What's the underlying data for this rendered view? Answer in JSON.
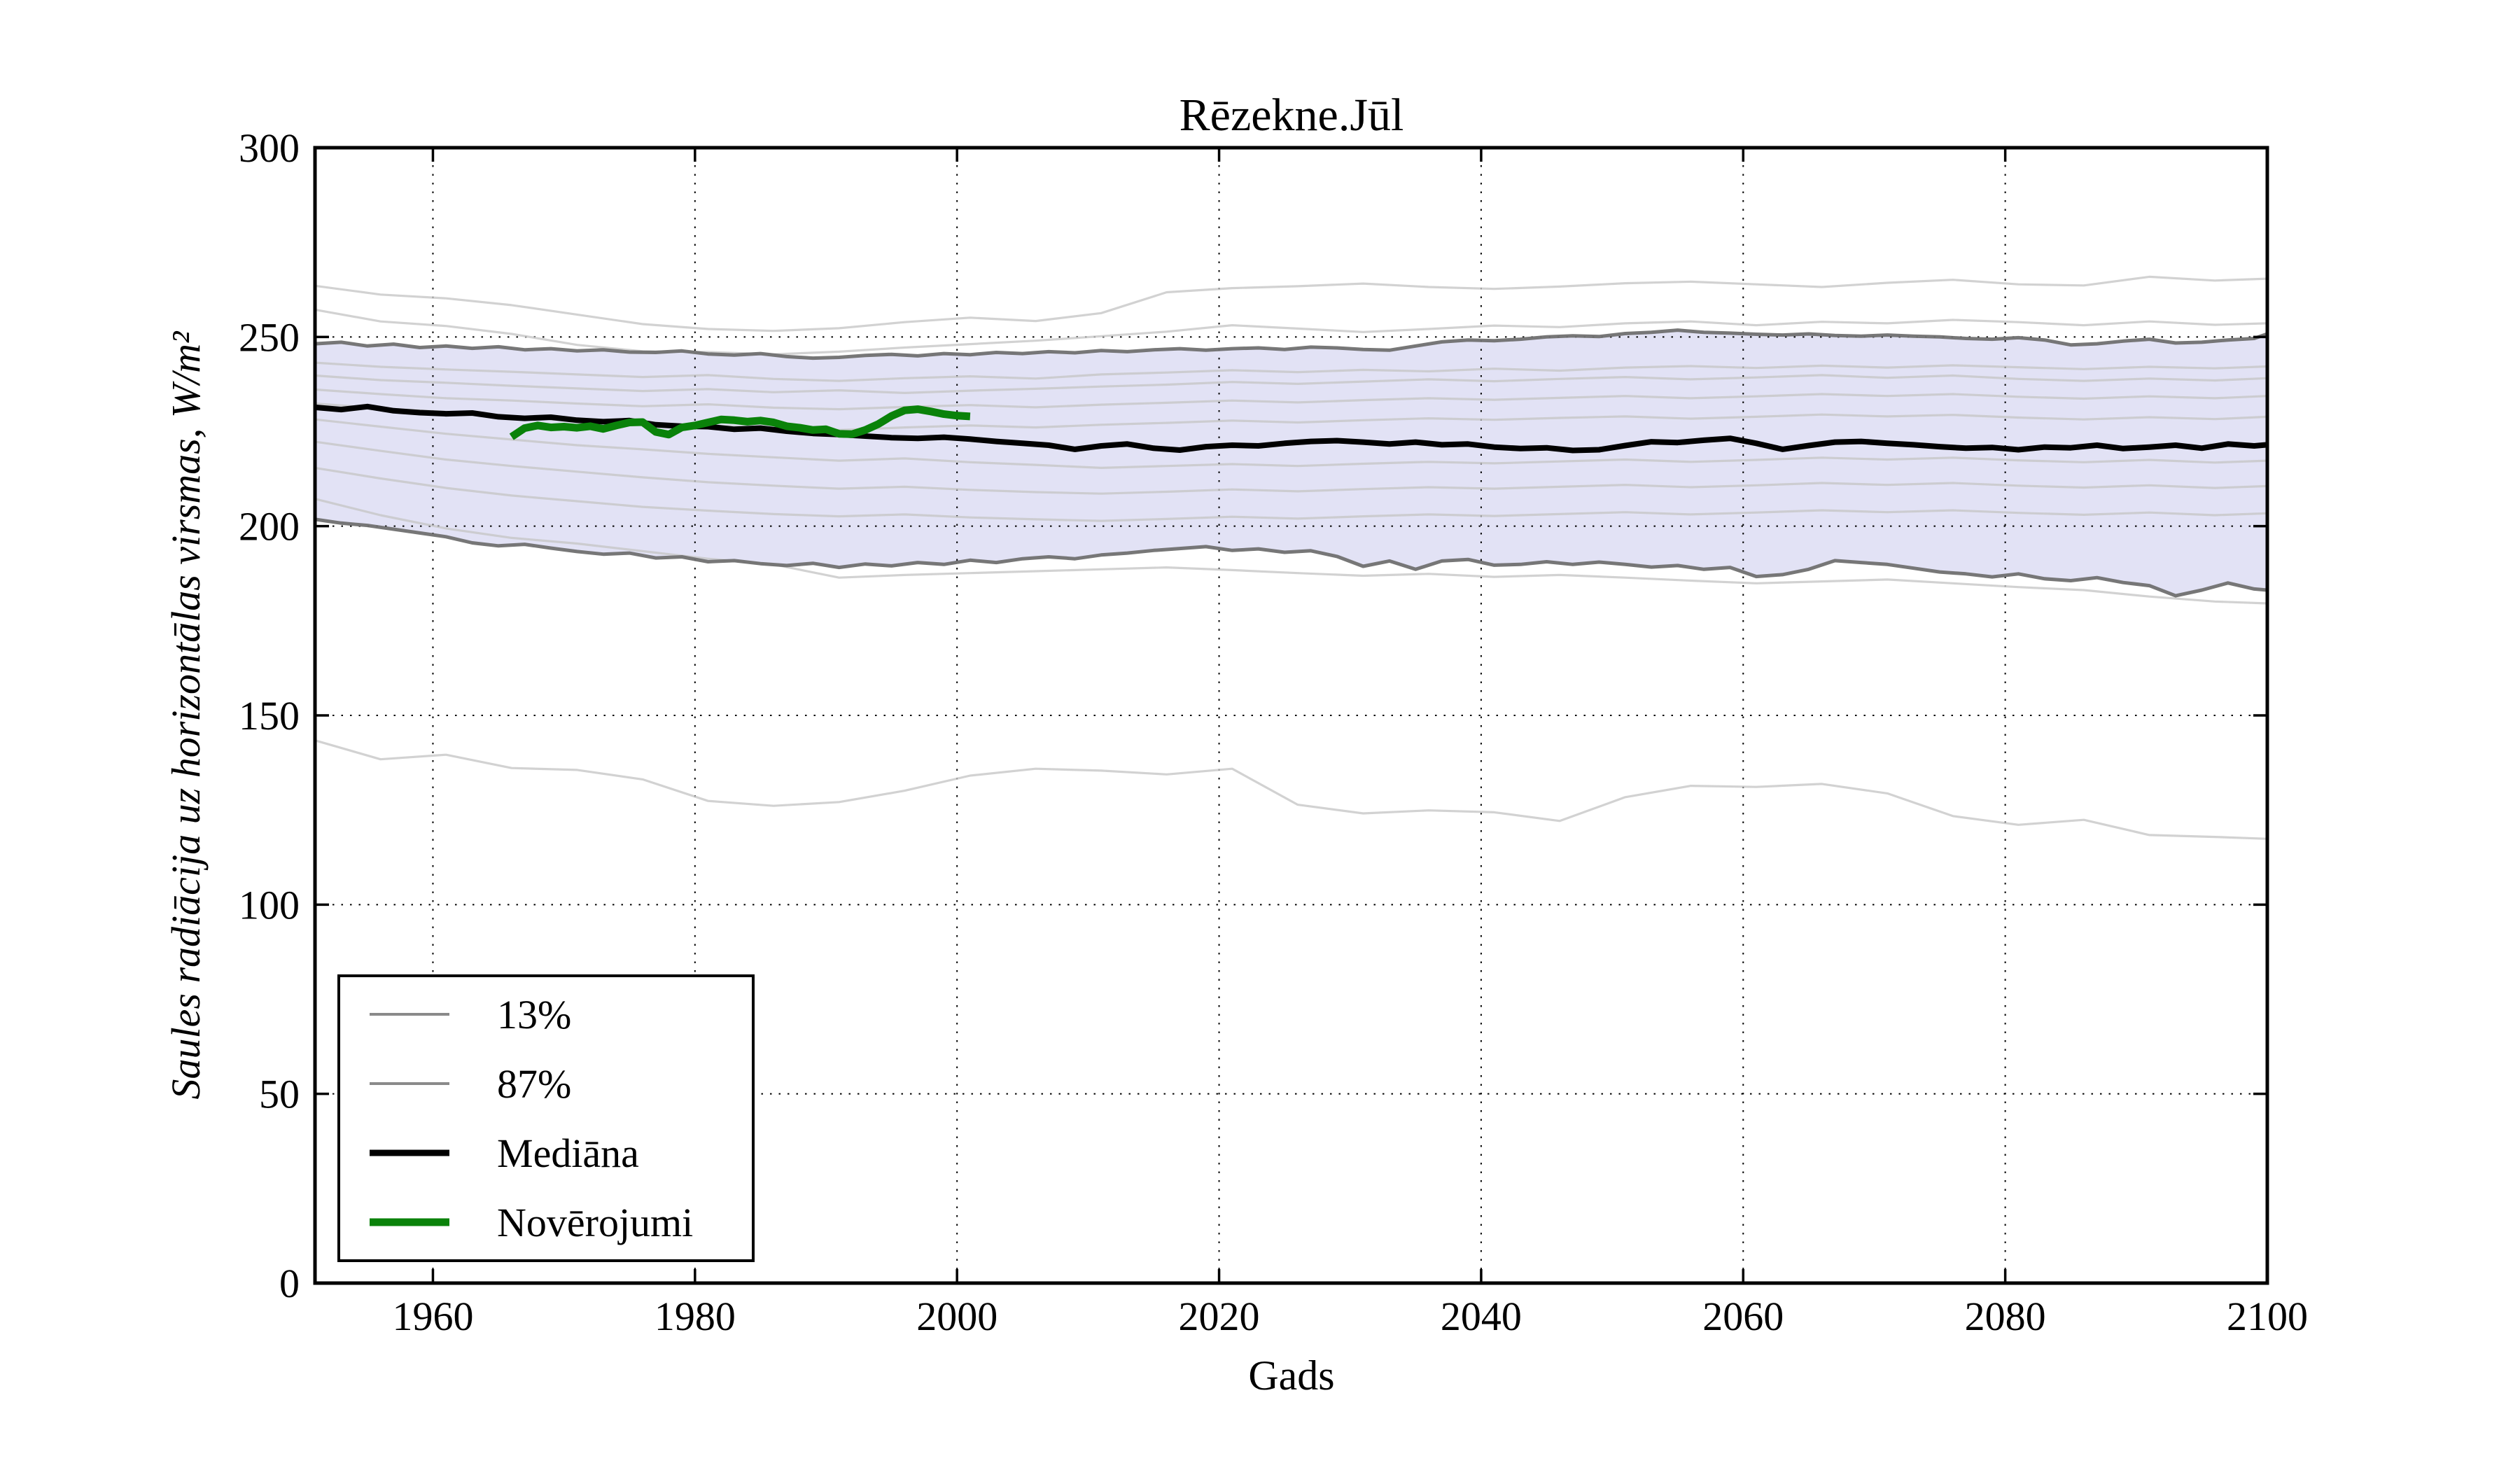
{
  "chart_data": {
    "type": "line",
    "title": "Rēzekne.Jūl",
    "xlabel": "Gads",
    "ylabel": "Saules radiācija uz horizontālas virsmas, W/m²",
    "xlim": [
      1951,
      2100
    ],
    "ylim": [
      0,
      300
    ],
    "xticks": [
      1960,
      1980,
      2000,
      2020,
      2040,
      2060,
      2080,
      2100
    ],
    "yticks": [
      0,
      50,
      100,
      150,
      200,
      250,
      300
    ],
    "grid": "dotted",
    "legend_position": "lower left",
    "band": {
      "fill": "#e2e2f5"
    },
    "years": [
      1951,
      1953,
      1955,
      1957,
      1959,
      1961,
      1963,
      1965,
      1967,
      1969,
      1971,
      1973,
      1975,
      1977,
      1979,
      1981,
      1983,
      1985,
      1987,
      1989,
      1991,
      1993,
      1995,
      1997,
      1999,
      2001,
      2003,
      2005,
      2007,
      2009,
      2011,
      2013,
      2015,
      2017,
      2019,
      2021,
      2023,
      2025,
      2027,
      2029,
      2031,
      2033,
      2035,
      2037,
      2039,
      2041,
      2043,
      2045,
      2047,
      2049,
      2051,
      2053,
      2055,
      2057,
      2059,
      2061,
      2063,
      2065,
      2067,
      2069,
      2071,
      2073,
      2075,
      2077,
      2079,
      2081,
      2083,
      2085,
      2087,
      2089,
      2091,
      2093,
      2095,
      2097,
      2099,
      2100
    ],
    "ensemble_years": [
      1951,
      1956,
      1961,
      1966,
      1971,
      1976,
      1981,
      1986,
      1991,
      1996,
      2001,
      2006,
      2011,
      2016,
      2021,
      2026,
      2031,
      2036,
      2041,
      2046,
      2051,
      2056,
      2061,
      2066,
      2071,
      2076,
      2081,
      2086,
      2091,
      2096,
      2100
    ],
    "series": [
      {
        "name": "ensemble-1",
        "role": "ensemble",
        "xref": "ensemble_years",
        "color": "#c7c7c7",
        "width": 3.2,
        "opacity": 0.8,
        "y": [
          263.5,
          261.2,
          260.2,
          258.4,
          255.9,
          253.4,
          252.1,
          251.6,
          252.3,
          253.9,
          255.1,
          254.2,
          256.3,
          261.8,
          262.9,
          263.4,
          264.1,
          263.2,
          262.7,
          263.3,
          264.2,
          264.6,
          263.9,
          263.2,
          264.3,
          265.1,
          263.9,
          263.6,
          265.9,
          264.9,
          265.4
        ]
      },
      {
        "name": "ensemble-2",
        "role": "ensemble",
        "xref": "ensemble_years",
        "color": "#c7c7c7",
        "width": 3.2,
        "opacity": 0.8,
        "y": [
          257.2,
          254.1,
          252.9,
          250.8,
          247.9,
          246.2,
          246.0,
          245.4,
          246.1,
          247.2,
          248.1,
          249.0,
          250.2,
          251.4,
          253.1,
          252.2,
          251.3,
          252.1,
          253.0,
          252.6,
          253.6,
          254.1,
          253.1,
          254.0,
          253.6,
          254.5,
          253.9,
          253.1,
          254.1,
          253.2,
          253.6
        ]
      },
      {
        "name": "ensemble-3",
        "role": "ensemble",
        "xref": "ensemble_years",
        "color": "#c7c7c7",
        "width": 3.2,
        "opacity": 0.8,
        "y": [
          243.2,
          242.1,
          241.4,
          240.8,
          240.1,
          239.4,
          239.9,
          238.9,
          238.4,
          239.1,
          239.6,
          239.0,
          240.1,
          240.6,
          241.2,
          240.7,
          241.3,
          240.9,
          241.6,
          241.1,
          241.9,
          242.3,
          241.8,
          242.4,
          241.9,
          242.5,
          242.0,
          241.5,
          242.1,
          241.7,
          242.2
        ]
      },
      {
        "name": "ensemble-4",
        "role": "ensemble",
        "xref": "ensemble_years",
        "color": "#c7c7c7",
        "width": 3.2,
        "opacity": 0.8,
        "y": [
          239.8,
          238.6,
          237.9,
          237.1,
          236.4,
          235.7,
          236.2,
          235.4,
          235.9,
          235.2,
          235.8,
          236.3,
          236.9,
          237.4,
          238.1,
          237.6,
          238.2,
          238.8,
          238.3,
          238.9,
          239.4,
          238.8,
          239.3,
          239.9,
          239.2,
          239.8,
          238.9,
          238.4,
          239.0,
          238.5,
          239.1
        ]
      },
      {
        "name": "ensemble-5",
        "role": "ensemble",
        "xref": "ensemble_years",
        "color": "#c7c7c7",
        "width": 3.2,
        "opacity": 0.8,
        "y": [
          236.1,
          234.9,
          233.8,
          233.2,
          232.4,
          231.7,
          232.2,
          231.3,
          230.9,
          231.5,
          232.0,
          231.4,
          232.1,
          232.6,
          233.2,
          232.7,
          233.3,
          233.8,
          233.4,
          233.9,
          234.4,
          233.8,
          234.3,
          234.9,
          234.4,
          234.9,
          234.2,
          233.7,
          234.3,
          233.8,
          234.4
        ]
      },
      {
        "name": "ensemble-6",
        "role": "ensemble",
        "xref": "ensemble_years",
        "color": "#c7c7c7",
        "width": 3.2,
        "opacity": 0.8,
        "y": [
          232.4,
          231.1,
          230.2,
          228.9,
          227.8,
          227.1,
          226.6,
          225.9,
          225.4,
          226.1,
          226.6,
          226.1,
          226.8,
          227.3,
          227.9,
          227.4,
          228.0,
          228.5,
          228.1,
          228.6,
          229.0,
          228.4,
          228.9,
          229.5,
          229.0,
          229.4,
          228.7,
          228.2,
          228.8,
          228.3,
          228.9
        ]
      },
      {
        "name": "ensemble-7",
        "role": "ensemble",
        "xref": "ensemble_years",
        "color": "#c7c7c7",
        "width": 3.2,
        "opacity": 0.8,
        "y": [
          228.2,
          226.3,
          224.4,
          222.9,
          221.4,
          220.3,
          219.1,
          218.2,
          217.3,
          217.9,
          216.9,
          216.2,
          215.4,
          215.9,
          216.4,
          215.9,
          216.5,
          217.0,
          216.6,
          217.1,
          217.6,
          217.0,
          217.5,
          218.1,
          217.6,
          218.1,
          217.4,
          216.9,
          217.5,
          216.8,
          217.3
        ]
      },
      {
        "name": "ensemble-8",
        "role": "ensemble",
        "xref": "ensemble_years",
        "color": "#c7c7c7",
        "width": 3.2,
        "opacity": 0.8,
        "y": [
          222.3,
          219.9,
          217.6,
          215.9,
          214.4,
          212.9,
          211.6,
          210.7,
          209.9,
          210.4,
          209.6,
          209.0,
          208.6,
          209.1,
          209.7,
          209.2,
          209.8,
          210.3,
          209.9,
          210.4,
          210.9,
          210.3,
          210.8,
          211.4,
          210.9,
          211.4,
          210.7,
          210.2,
          210.8,
          210.1,
          210.6
        ]
      },
      {
        "name": "ensemble-9",
        "role": "ensemble",
        "xref": "ensemble_years",
        "color": "#c7c7c7",
        "width": 3.2,
        "opacity": 0.8,
        "y": [
          215.4,
          212.6,
          210.1,
          208.1,
          206.6,
          205.1,
          204.1,
          203.2,
          202.6,
          203.1,
          202.3,
          201.8,
          201.4,
          201.9,
          202.5,
          202.0,
          202.6,
          203.1,
          202.7,
          203.2,
          203.7,
          203.1,
          203.6,
          204.2,
          203.7,
          204.2,
          203.5,
          203.0,
          203.6,
          202.9,
          203.4
        ]
      },
      {
        "name": "ensemble-10",
        "role": "ensemble",
        "xref": "ensemble_years",
        "color": "#c7c7c7",
        "width": 3.2,
        "opacity": 0.8,
        "y": [
          207.2,
          202.9,
          199.4,
          196.9,
          195.4,
          193.4,
          191.4,
          189.9,
          186.4,
          187.1,
          187.6,
          188.1,
          188.6,
          189.1,
          188.4,
          187.6,
          186.9,
          187.4,
          186.6,
          187.1,
          186.4,
          185.6,
          184.9,
          185.4,
          185.9,
          184.9,
          183.9,
          183.1,
          181.4,
          180.1,
          179.6
        ]
      },
      {
        "name": "ensemble-11",
        "role": "ensemble",
        "xref": "ensemble_years",
        "color": "#c7c7c7",
        "width": 3.2,
        "opacity": 0.8,
        "y": [
          143.4,
          138.4,
          139.6,
          136.1,
          135.6,
          133.1,
          127.4,
          126.1,
          127.1,
          130.1,
          134.1,
          135.9,
          135.4,
          134.4,
          135.9,
          126.4,
          124.1,
          124.9,
          124.4,
          122.1,
          128.4,
          131.4,
          131.1,
          131.9,
          129.4,
          123.4,
          121.1,
          122.4,
          118.4,
          117.9,
          117.4
        ]
      },
      {
        "name": "13%",
        "role": "quantile_lower",
        "color": "#707070",
        "width": 5,
        "opacity": 0.95,
        "y": [
          201.8,
          200.8,
          200.2,
          199.2,
          198.2,
          197.2,
          195.6,
          194.8,
          195.2,
          194.2,
          193.3,
          192.6,
          192.9,
          191.6,
          191.9,
          190.6,
          190.9,
          190.1,
          189.6,
          190.2,
          189.1,
          190.0,
          189.5,
          190.4,
          189.9,
          191.0,
          190.4,
          191.4,
          191.9,
          191.4,
          192.4,
          192.9,
          193.6,
          194.1,
          194.6,
          193.6,
          194.0,
          193.1,
          193.5,
          192.0,
          189.4,
          190.8,
          188.6,
          190.8,
          191.2,
          189.7,
          189.9,
          190.6,
          189.9,
          190.5,
          189.9,
          189.2,
          189.6,
          188.6,
          189.1,
          186.7,
          187.2,
          188.6,
          190.9,
          190.4,
          189.9,
          188.9,
          187.9,
          187.4,
          186.6,
          187.4,
          186.1,
          185.6,
          186.4,
          185.1,
          184.3,
          181.6,
          183.1,
          185.0,
          183.4,
          183.1
        ]
      },
      {
        "name": "87%",
        "role": "quantile_upper",
        "color": "#707070",
        "width": 5,
        "opacity": 0.95,
        "y": [
          248.2,
          248.6,
          247.6,
          248.1,
          247.2,
          247.6,
          247.0,
          247.4,
          246.6,
          246.9,
          246.3,
          246.6,
          246.0,
          245.9,
          246.3,
          245.5,
          245.2,
          245.6,
          244.8,
          244.4,
          244.6,
          245.1,
          245.4,
          245.0,
          245.6,
          245.3,
          245.9,
          245.6,
          246.1,
          245.8,
          246.4,
          246.1,
          246.6,
          246.9,
          246.5,
          246.9,
          247.1,
          246.7,
          247.3,
          247.1,
          246.7,
          246.5,
          247.6,
          248.7,
          249.2,
          249.0,
          249.4,
          250.0,
          250.3,
          250.1,
          250.9,
          251.2,
          251.8,
          251.2,
          251.0,
          250.7,
          250.5,
          250.8,
          250.4,
          250.2,
          250.5,
          250.2,
          250.0,
          249.6,
          249.4,
          249.8,
          249.2,
          247.9,
          248.2,
          248.9,
          249.4,
          248.4,
          248.6,
          249.2,
          249.6,
          250.8
        ]
      },
      {
        "name": "Mediāna",
        "role": "median",
        "color": "#000000",
        "width": 8,
        "opacity": 1,
        "y": [
          231.4,
          230.8,
          231.6,
          230.5,
          230.0,
          229.7,
          229.9,
          228.9,
          228.5,
          228.8,
          228.0,
          227.6,
          227.9,
          226.8,
          226.4,
          226.3,
          225.6,
          225.9,
          225.1,
          224.5,
          224.2,
          223.8,
          223.4,
          223.2,
          223.5,
          223.0,
          222.4,
          221.9,
          221.4,
          220.3,
          221.2,
          221.7,
          220.6,
          220.1,
          221.0,
          221.4,
          221.2,
          221.9,
          222.4,
          222.6,
          222.2,
          221.7,
          222.2,
          221.5,
          221.7,
          220.9,
          220.5,
          220.7,
          220.0,
          220.2,
          221.3,
          222.3,
          222.1,
          222.7,
          223.2,
          221.9,
          220.3,
          221.3,
          222.2,
          222.4,
          221.9,
          221.5,
          221.0,
          220.6,
          220.8,
          220.2,
          220.9,
          220.7,
          221.4,
          220.5,
          220.9,
          221.4,
          220.6,
          221.7,
          221.2,
          221.5
        ]
      },
      {
        "name": "Novērojumi",
        "role": "observations",
        "color": "#0a820a",
        "width": 11,
        "opacity": 1,
        "x": [
          1966,
          1967,
          1968,
          1969,
          1970,
          1971,
          1972,
          1973,
          1974,
          1975,
          1976,
          1977,
          1978,
          1979,
          1980,
          1981,
          1982,
          1983,
          1984,
          1985,
          1986,
          1987,
          1988,
          1989,
          1990,
          1991,
          1992,
          1993,
          1994,
          1995,
          1996,
          1997,
          1998,
          1999,
          2000,
          2001
        ],
        "y": [
          223.6,
          225.9,
          226.6,
          226.1,
          226.3,
          226.0,
          226.4,
          225.7,
          226.6,
          227.4,
          227.5,
          224.9,
          224.2,
          226.1,
          226.6,
          227.4,
          228.2,
          228.0,
          227.6,
          227.9,
          227.4,
          226.4,
          226.0,
          225.4,
          225.6,
          224.4,
          224.3,
          225.4,
          227.0,
          229.1,
          230.6,
          230.9,
          230.3,
          229.6,
          229.2,
          229.0
        ]
      }
    ],
    "legend": {
      "entries": [
        {
          "label": "13%",
          "color": "#8a8a8a",
          "line_width": 4
        },
        {
          "label": "87%",
          "color": "#8a8a8a",
          "line_width": 4
        },
        {
          "label": "Mediāna",
          "color": "#000000",
          "line_width": 9
        },
        {
          "label": "Novērojumi",
          "color": "#0a820a",
          "line_width": 11
        }
      ]
    }
  }
}
